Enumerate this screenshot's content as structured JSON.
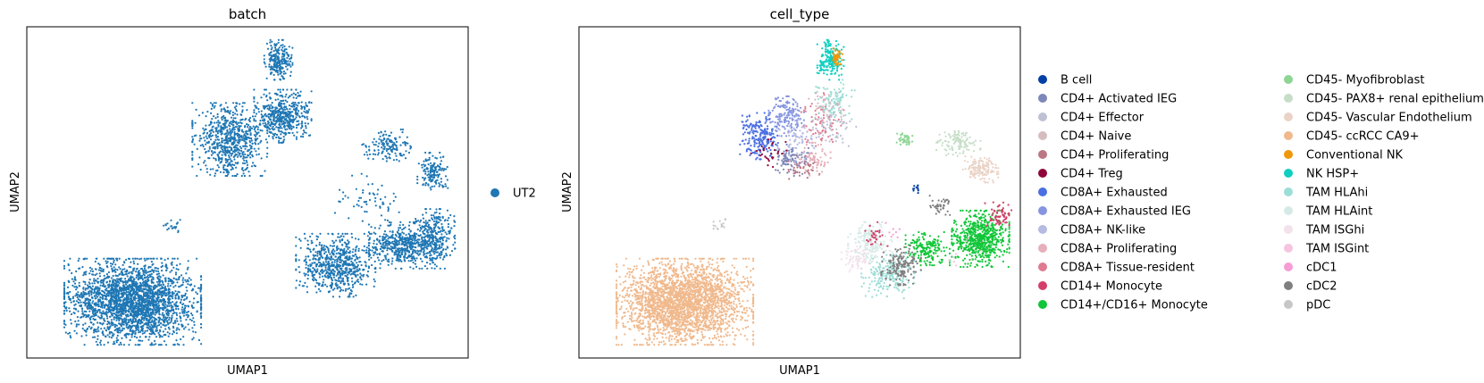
{
  "chart_data": [
    {
      "type": "scatter",
      "title": "batch",
      "xlabel": "UMAP1",
      "ylabel": "UMAP2",
      "grid": false,
      "ticks": false,
      "legend_position": "right",
      "series": [
        {
          "name": "UT2",
          "color": "#1f77b4"
        }
      ],
      "clusters": [
        {
          "series": "UT2",
          "cx": 0.24,
          "cy": 0.83,
          "rx": 0.155,
          "ry": 0.13,
          "n": 2600
        },
        {
          "series": "UT2",
          "cx": 0.46,
          "cy": 0.34,
          "rx": 0.085,
          "ry": 0.11,
          "n": 700
        },
        {
          "series": "UT2",
          "cx": 0.58,
          "cy": 0.27,
          "rx": 0.065,
          "ry": 0.08,
          "n": 500
        },
        {
          "series": "UT2",
          "cx": 0.57,
          "cy": 0.1,
          "rx": 0.032,
          "ry": 0.06,
          "n": 220
        },
        {
          "series": "UT2",
          "cx": 0.7,
          "cy": 0.72,
          "rx": 0.09,
          "ry": 0.095,
          "n": 650
        },
        {
          "series": "UT2",
          "cx": 0.85,
          "cy": 0.66,
          "rx": 0.075,
          "ry": 0.07,
          "n": 500
        },
        {
          "series": "UT2",
          "cx": 0.92,
          "cy": 0.64,
          "rx": 0.05,
          "ry": 0.09,
          "n": 320
        },
        {
          "series": "UT2",
          "cx": 0.92,
          "cy": 0.44,
          "rx": 0.035,
          "ry": 0.06,
          "n": 150
        },
        {
          "series": "UT2",
          "cx": 0.82,
          "cy": 0.36,
          "rx": 0.06,
          "ry": 0.05,
          "n": 140
        },
        {
          "series": "UT2",
          "cx": 0.77,
          "cy": 0.52,
          "rx": 0.08,
          "ry": 0.08,
          "n": 60
        },
        {
          "series": "UT2",
          "cx": 0.33,
          "cy": 0.6,
          "rx": 0.02,
          "ry": 0.02,
          "n": 20
        }
      ]
    },
    {
      "type": "scatter",
      "title": "cell_type",
      "xlabel": "UMAP1",
      "ylabel": "UMAP2",
      "grid": false,
      "ticks": false,
      "legend_position": "right",
      "series": [
        {
          "name": "B cell",
          "color": "#023fa5"
        },
        {
          "name": "CD4+ Activated IEG",
          "color": "#7d87b9"
        },
        {
          "name": "CD4+ Effector",
          "color": "#bec1d4"
        },
        {
          "name": "CD4+ Naive",
          "color": "#d6bcc0"
        },
        {
          "name": "CD4+ Proliferating",
          "color": "#bb7784"
        },
        {
          "name": "CD4+ Treg",
          "color": "#8e063b"
        },
        {
          "name": "CD8A+ Exhausted",
          "color": "#4a6fe3"
        },
        {
          "name": "CD8A+ Exhausted IEG",
          "color": "#8595e1"
        },
        {
          "name": "CD8A+ NK-like",
          "color": "#b5bbe3"
        },
        {
          "name": "CD8A+ Proliferating",
          "color": "#e6afb9"
        },
        {
          "name": "CD8A+ Tissue-resident",
          "color": "#e07b91"
        },
        {
          "name": "CD14+ Monocyte",
          "color": "#d33f6a"
        },
        {
          "name": "CD14+/CD16+ Monocyte",
          "color": "#11c638"
        },
        {
          "name": "CD45- Myofibroblast",
          "color": "#8dd593"
        },
        {
          "name": "CD45- PAX8+ renal epithelium",
          "color": "#c6dec7"
        },
        {
          "name": "CD45- Vascular Endothelium",
          "color": "#ead3c6"
        },
        {
          "name": "CD45- ccRCC CA9+",
          "color": "#f0b98d"
        },
        {
          "name": "Conventional NK",
          "color": "#ef9708"
        },
        {
          "name": "NK HSP+",
          "color": "#0fcfc0"
        },
        {
          "name": "TAM HLAhi",
          "color": "#9cded6"
        },
        {
          "name": "TAM HLAint",
          "color": "#d5eae7"
        },
        {
          "name": "TAM ISGhi",
          "color": "#f3e1eb"
        },
        {
          "name": "TAM ISGint",
          "color": "#f6c4e1"
        },
        {
          "name": "cDC1",
          "color": "#f79cd4"
        },
        {
          "name": "cDC2",
          "color": "#7f7f7f"
        },
        {
          "name": "pDC",
          "color": "#c7c7c7"
        }
      ],
      "clusters": [
        {
          "series": "CD45- ccRCC CA9+",
          "cx": 0.24,
          "cy": 0.83,
          "rx": 0.155,
          "ry": 0.13,
          "n": 2600
        },
        {
          "series": "CD8A+ Exhausted",
          "cx": 0.41,
          "cy": 0.33,
          "rx": 0.045,
          "ry": 0.07,
          "n": 220
        },
        {
          "series": "CD8A+ Exhausted IEG",
          "cx": 0.47,
          "cy": 0.27,
          "rx": 0.04,
          "ry": 0.06,
          "n": 160
        },
        {
          "series": "CD4+ Activated IEG",
          "cx": 0.48,
          "cy": 0.4,
          "rx": 0.04,
          "ry": 0.05,
          "n": 100
        },
        {
          "series": "CD8A+ NK-like",
          "cx": 0.5,
          "cy": 0.34,
          "rx": 0.05,
          "ry": 0.07,
          "n": 80
        },
        {
          "series": "CD8A+ Tissue-resident",
          "cx": 0.55,
          "cy": 0.28,
          "rx": 0.05,
          "ry": 0.08,
          "n": 80
        },
        {
          "series": "CD8A+ Proliferating",
          "cx": 0.53,
          "cy": 0.4,
          "rx": 0.04,
          "ry": 0.05,
          "n": 70
        },
        {
          "series": "CD4+ Proliferating",
          "cx": 0.51,
          "cy": 0.43,
          "rx": 0.035,
          "ry": 0.04,
          "n": 40
        },
        {
          "series": "CD4+ Naive",
          "cx": 0.56,
          "cy": 0.24,
          "rx": 0.04,
          "ry": 0.05,
          "n": 50
        },
        {
          "series": "CD4+ Effector",
          "cx": 0.58,
          "cy": 0.3,
          "rx": 0.05,
          "ry": 0.06,
          "n": 60
        },
        {
          "series": "CD4+ Treg",
          "cx": 0.43,
          "cy": 0.38,
          "rx": 0.04,
          "ry": 0.05,
          "n": 30
        },
        {
          "series": "TAM HLAhi",
          "cx": 0.58,
          "cy": 0.22,
          "rx": 0.045,
          "ry": 0.06,
          "n": 90
        },
        {
          "series": "NK HSP+",
          "cx": 0.57,
          "cy": 0.1,
          "rx": 0.03,
          "ry": 0.06,
          "n": 180
        },
        {
          "series": "Conventional NK",
          "cx": 0.585,
          "cy": 0.09,
          "rx": 0.012,
          "ry": 0.025,
          "n": 50
        },
        {
          "series": "CD14+/CD16+ Monocyte",
          "cx": 0.91,
          "cy": 0.64,
          "rx": 0.065,
          "ry": 0.085,
          "n": 650
        },
        {
          "series": "CD14+/CD16+ Monocyte",
          "cx": 0.79,
          "cy": 0.67,
          "rx": 0.05,
          "ry": 0.05,
          "n": 180
        },
        {
          "series": "TAM HLAhi",
          "cx": 0.7,
          "cy": 0.75,
          "rx": 0.06,
          "ry": 0.07,
          "n": 200
        },
        {
          "series": "TAM HLAint",
          "cx": 0.66,
          "cy": 0.65,
          "rx": 0.05,
          "ry": 0.06,
          "n": 180
        },
        {
          "series": "TAM ISGhi",
          "cx": 0.63,
          "cy": 0.7,
          "rx": 0.035,
          "ry": 0.04,
          "n": 70
        },
        {
          "series": "cDC2",
          "cx": 0.73,
          "cy": 0.72,
          "rx": 0.045,
          "ry": 0.06,
          "n": 160
        },
        {
          "series": "cDC2",
          "cx": 0.82,
          "cy": 0.54,
          "rx": 0.025,
          "ry": 0.03,
          "n": 40
        },
        {
          "series": "CD14+ Monocyte",
          "cx": 0.95,
          "cy": 0.57,
          "rx": 0.03,
          "ry": 0.04,
          "n": 60
        },
        {
          "series": "CD14+ Monocyte",
          "cx": 0.67,
          "cy": 0.63,
          "rx": 0.03,
          "ry": 0.04,
          "n": 30
        },
        {
          "series": "CD45- Vascular Endothelium",
          "cx": 0.91,
          "cy": 0.43,
          "rx": 0.04,
          "ry": 0.04,
          "n": 150
        },
        {
          "series": "CD45- PAX8+ renal epithelium",
          "cx": 0.86,
          "cy": 0.35,
          "rx": 0.05,
          "ry": 0.04,
          "n": 120
        },
        {
          "series": "CD45- Myofibroblast",
          "cx": 0.74,
          "cy": 0.34,
          "rx": 0.02,
          "ry": 0.02,
          "n": 40
        },
        {
          "series": "B cell",
          "cx": 0.765,
          "cy": 0.49,
          "rx": 0.008,
          "ry": 0.015,
          "n": 12
        },
        {
          "series": "TAM ISGint",
          "cx": 0.88,
          "cy": 0.7,
          "rx": 0.05,
          "ry": 0.06,
          "n": 10
        },
        {
          "series": "cDC1",
          "cx": 0.71,
          "cy": 0.62,
          "rx": 0.03,
          "ry": 0.03,
          "n": 8
        },
        {
          "series": "pDC",
          "cx": 0.32,
          "cy": 0.6,
          "rx": 0.015,
          "ry": 0.02,
          "n": 15
        }
      ]
    }
  ]
}
